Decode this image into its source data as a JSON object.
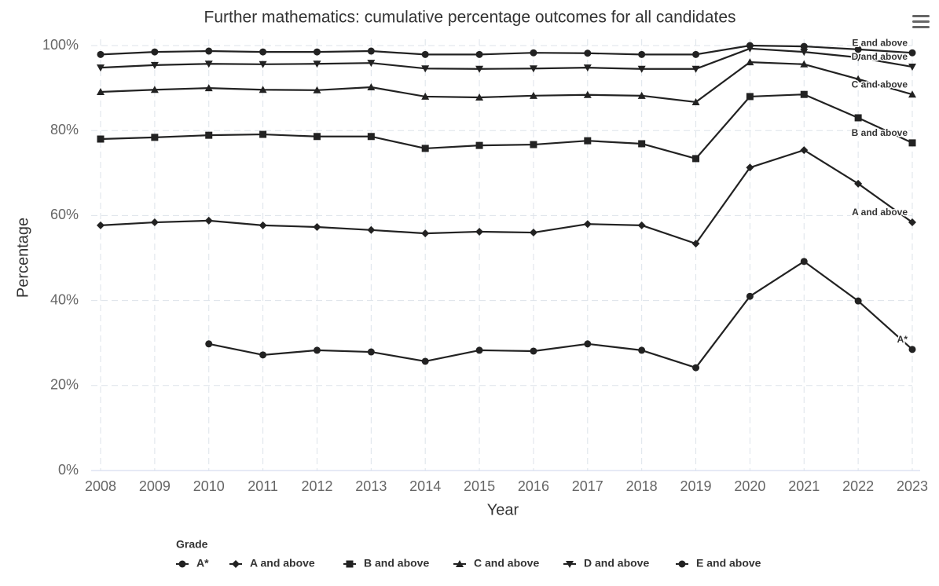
{
  "chart_data": {
    "type": "line",
    "title": "Further mathematics: cumulative percentage outcomes for all candidates",
    "x_label": "Year",
    "y_label": "Percentage",
    "legend_title": "Grade",
    "categories": [
      "2008",
      "2009",
      "2010",
      "2011",
      "2012",
      "2013",
      "2014",
      "2015",
      "2016",
      "2017",
      "2018",
      "2019",
      "2020",
      "2021",
      "2022",
      "2023"
    ],
    "ylim": [
      0,
      100
    ],
    "yticks": [
      {
        "value": 0,
        "label": "0%"
      },
      {
        "value": 20,
        "label": "20%"
      },
      {
        "value": 40,
        "label": "40%"
      },
      {
        "value": 60,
        "label": "60%"
      },
      {
        "value": 80,
        "label": "80%"
      },
      {
        "value": 100,
        "label": "100%"
      }
    ],
    "grid": true,
    "series": [
      {
        "name": "A*",
        "color": "#222222",
        "marker": "circle",
        "values": [
          null,
          null,
          29.8,
          27.2,
          28.3,
          27.9,
          25.7,
          28.3,
          28.1,
          29.8,
          28.3,
          24.2,
          41.0,
          49.2,
          39.9,
          28.5
        ]
      },
      {
        "name": "A and above",
        "color": "#222222",
        "marker": "diamond",
        "values": [
          57.7,
          58.4,
          58.8,
          57.7,
          57.3,
          56.6,
          55.8,
          56.2,
          56.0,
          58.0,
          57.7,
          53.4,
          71.3,
          75.4,
          67.5,
          58.4
        ]
      },
      {
        "name": "B and above",
        "color": "#222222",
        "marker": "square",
        "values": [
          78.0,
          78.4,
          78.9,
          79.1,
          78.6,
          78.6,
          75.8,
          76.5,
          76.7,
          77.6,
          76.9,
          73.4,
          88.0,
          88.5,
          83.0,
          77.1
        ]
      },
      {
        "name": "C and above",
        "color": "#222222",
        "marker": "triangle",
        "values": [
          89.1,
          89.6,
          90.0,
          89.6,
          89.5,
          90.2,
          88.0,
          87.8,
          88.2,
          88.4,
          88.2,
          86.7,
          96.1,
          95.6,
          92.1,
          88.5
        ]
      },
      {
        "name": "D and above",
        "color": "#222222",
        "marker": "triangle-down",
        "values": [
          94.8,
          95.4,
          95.7,
          95.6,
          95.7,
          95.9,
          94.6,
          94.5,
          94.6,
          94.8,
          94.5,
          94.5,
          99.3,
          98.5,
          97.2,
          95.0
        ]
      },
      {
        "name": "E and above",
        "color": "#222222",
        "marker": "circle",
        "values": [
          97.9,
          98.5,
          98.7,
          98.5,
          98.5,
          98.7,
          97.9,
          97.9,
          98.3,
          98.2,
          97.9,
          97.9,
          100,
          99.8,
          99.1,
          98.3
        ]
      }
    ]
  }
}
